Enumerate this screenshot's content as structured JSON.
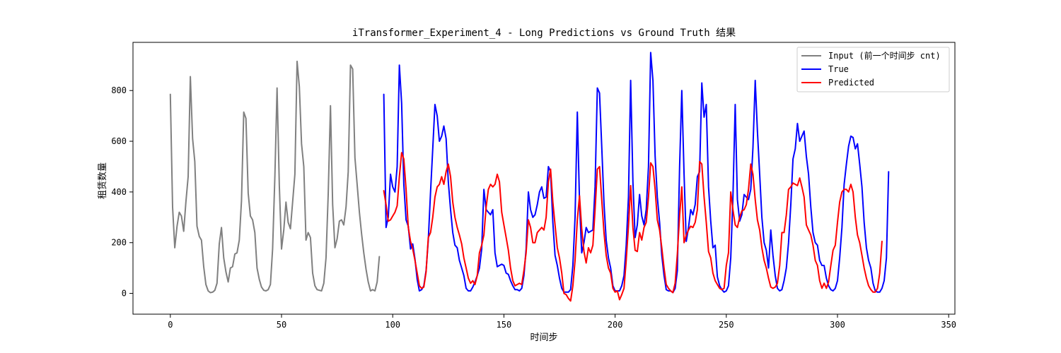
{
  "chart_data": {
    "type": "line",
    "title": "iTransformer_Experiment_4 - Long Predictions vs Ground Truth 结果",
    "xlabel": "时间步",
    "ylabel": "租赁数量",
    "xlim": [
      -16.8,
      352.8
    ],
    "ylim": [
      -82,
      990
    ],
    "xticks": [
      0,
      50,
      100,
      150,
      200,
      250,
      300,
      350
    ],
    "yticks": [
      0,
      200,
      400,
      600,
      800
    ],
    "grid": false,
    "legend_position": "top-right",
    "series": [
      {
        "name": "Input (前一个时间步 cnt)",
        "color": "#808080",
        "x0": 0,
        "values": [
          785,
          340,
          180,
          265,
          320,
          305,
          245,
          360,
          460,
          855,
          610,
          520,
          265,
          225,
          210,
          105,
          35,
          10,
          3,
          5,
          12,
          40,
          195,
          260,
          140,
          85,
          45,
          100,
          105,
          155,
          160,
          210,
          365,
          715,
          690,
          395,
          305,
          290,
          240,
          100,
          55,
          25,
          12,
          10,
          15,
          35,
          175,
          460,
          810,
          425,
          175,
          250,
          360,
          280,
          255,
          360,
          470,
          915,
          815,
          590,
          500,
          210,
          240,
          220,
          80,
          30,
          15,
          12,
          10,
          40,
          140,
          390,
          740,
          350,
          180,
          215,
          285,
          290,
          270,
          340,
          480,
          900,
          885,
          535,
          430,
          320,
          235,
          160,
          95,
          45,
          10,
          15,
          10,
          45,
          145
        ]
      },
      {
        "name": "True",
        "color": "#0000ff",
        "x0": 96,
        "values": [
          785,
          260,
          300,
          470,
          420,
          400,
          500,
          900,
          750,
          430,
          290,
          265,
          175,
          195,
          135,
          55,
          10,
          15,
          30,
          90,
          210,
          400,
          570,
          745,
          700,
          600,
          620,
          660,
          610,
          440,
          330,
          240,
          190,
          180,
          130,
          100,
          70,
          20,
          10,
          10,
          25,
          45,
          70,
          100,
          175,
          410,
          330,
          320,
          310,
          330,
          160,
          105,
          110,
          115,
          110,
          80,
          75,
          50,
          30,
          15,
          15,
          10,
          20,
          70,
          175,
          400,
          330,
          300,
          310,
          350,
          400,
          420,
          375,
          380,
          500,
          480,
          280,
          150,
          110,
          60,
          20,
          5,
          5,
          5,
          15,
          110,
          300,
          715,
          360,
          160,
          200,
          260,
          240,
          245,
          250,
          420,
          810,
          790,
          580,
          355,
          210,
          140,
          100,
          30,
          10,
          10,
          10,
          30,
          70,
          190,
          380,
          840,
          440,
          220,
          270,
          390,
          305,
          270,
          330,
          500,
          950,
          840,
          540,
          380,
          280,
          150,
          70,
          15,
          10,
          10,
          3,
          20,
          90,
          500,
          800,
          470,
          205,
          260,
          330,
          310,
          350,
          460,
          480,
          830,
          695,
          745,
          420,
          285,
          180,
          190,
          65,
          30,
          15,
          5,
          10,
          30,
          140,
          380,
          745,
          370,
          285,
          310,
          390,
          380,
          370,
          410,
          575,
          840,
          640,
          470,
          300,
          200,
          170,
          100,
          250,
          150,
          70,
          20,
          10,
          15,
          50,
          100,
          200,
          350,
          530,
          570,
          670,
          600,
          620,
          640,
          540,
          470,
          340,
          240,
          200,
          190,
          130,
          110,
          110,
          60,
          30,
          15,
          10,
          20,
          50,
          140,
          260,
          430,
          510,
          580,
          620,
          615,
          570,
          590,
          510,
          420,
          280,
          180,
          130,
          100,
          40,
          10,
          5,
          5,
          20,
          50,
          140,
          480
        ]
      },
      {
        "name": "Predicted",
        "color": "#ff0000",
        "x0": 96,
        "values": [
          405,
          350,
          285,
          290,
          305,
          320,
          345,
          460,
          555,
          530,
          410,
          260,
          205,
          175,
          130,
          80,
          30,
          20,
          25,
          85,
          220,
          240,
          300,
          380,
          420,
          430,
          460,
          430,
          480,
          510,
          460,
          360,
          300,
          260,
          230,
          195,
          140,
          100,
          60,
          40,
          50,
          35,
          70,
          160,
          190,
          230,
          340,
          410,
          430,
          420,
          430,
          470,
          440,
          320,
          270,
          220,
          170,
          100,
          50,
          30,
          35,
          40,
          35,
          90,
          160,
          290,
          260,
          200,
          200,
          240,
          250,
          260,
          250,
          300,
          440,
          490,
          360,
          270,
          180,
          140,
          80,
          0,
          -5,
          -20,
          -30,
          30,
          130,
          290,
          385,
          255,
          165,
          120,
          180,
          160,
          190,
          330,
          490,
          500,
          370,
          240,
          150,
          100,
          80,
          20,
          5,
          10,
          -25,
          -5,
          20,
          130,
          265,
          425,
          260,
          170,
          165,
          240,
          210,
          260,
          280,
          380,
          515,
          500,
          410,
          290,
          250,
          180,
          100,
          35,
          20,
          10,
          3,
          40,
          155,
          305,
          420,
          200,
          230,
          250,
          265,
          260,
          280,
          330,
          520,
          510,
          380,
          280,
          165,
          140,
          80,
          50,
          35,
          20,
          15,
          20,
          110,
          160,
          400,
          330,
          270,
          260,
          300,
          325,
          330,
          350,
          410,
          510,
          470,
          370,
          290,
          250,
          180,
          130,
          100,
          60,
          25,
          20,
          25,
          40,
          110,
          240,
          240,
          310,
          410,
          420,
          435,
          430,
          425,
          455,
          420,
          380,
          270,
          250,
          230,
          190,
          130,
          110,
          50,
          20,
          40,
          20,
          45,
          110,
          170,
          190,
          280,
          360,
          400,
          410,
          410,
          400,
          430,
          400,
          300,
          230,
          200,
          150,
          100,
          60,
          30,
          15,
          5,
          5,
          20,
          80,
          205
        ]
      }
    ]
  }
}
